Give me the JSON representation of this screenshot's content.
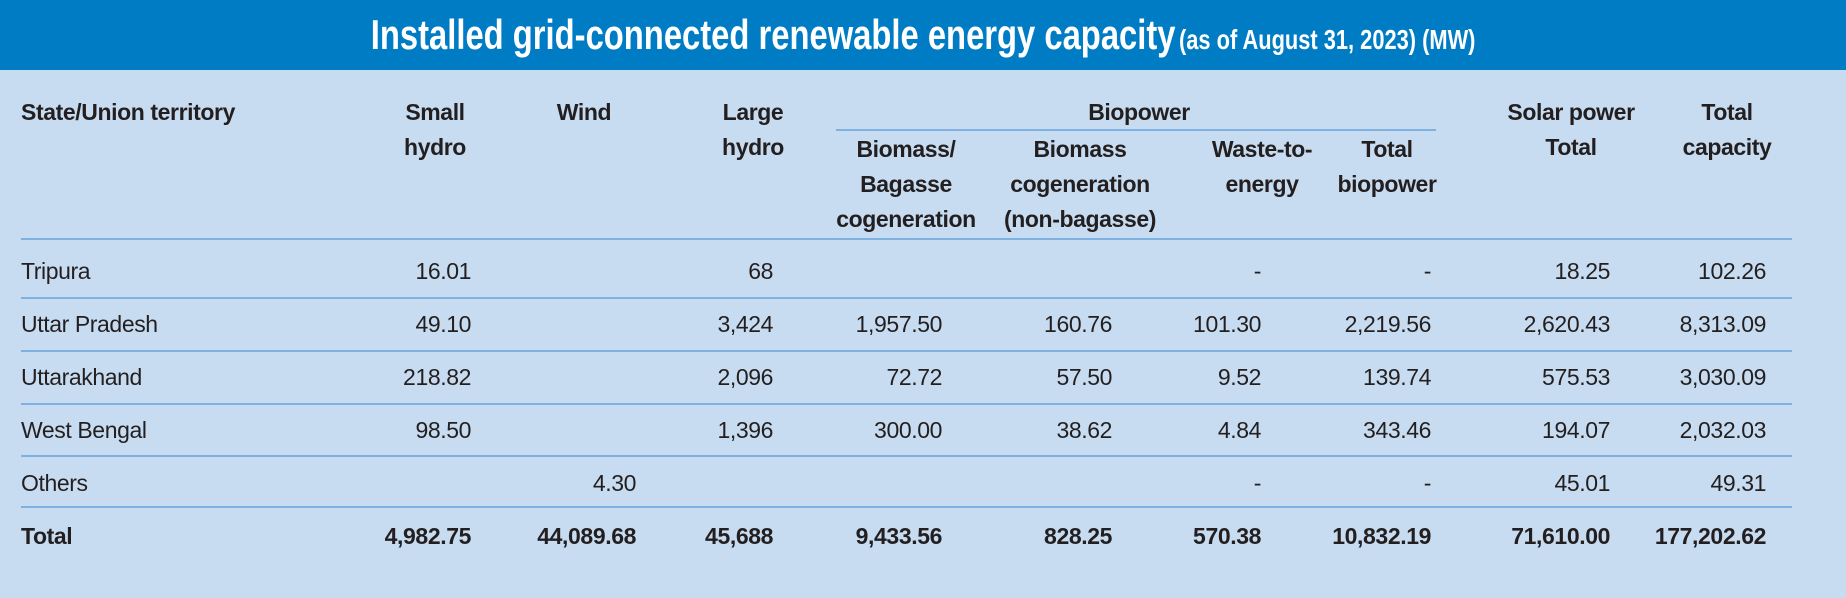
{
  "title": {
    "main": "Installed grid-connected renewable energy capacity",
    "sub": "(as of August 31, 2023) (MW)"
  },
  "colors": {
    "banner": "#007cc5",
    "background": "#c7dcf0",
    "rule": "#7fb1e0"
  },
  "headers": {
    "state": "State/Union territory",
    "small_hydro": [
      "Small",
      "hydro"
    ],
    "wind": [
      "Wind"
    ],
    "large_hydro": [
      "Large",
      "hydro"
    ],
    "biopower": "Biopower",
    "biomass_bagasse": [
      "Biomass/",
      "Bagasse",
      "cogeneration"
    ],
    "biomass_nonbagasse": [
      "Biomass",
      "cogeneration",
      "(non-bagasse)"
    ],
    "waste_to_energy": [
      "Waste-to-",
      "energy"
    ],
    "total_biopower": [
      "Total",
      "biopower"
    ],
    "solar_total": [
      "Solar power",
      "Total"
    ],
    "total_capacity": [
      "Total",
      "capacity"
    ]
  },
  "rows": [
    [
      "Tripura",
      "16.01",
      "",
      "68",
      "",
      "",
      "-",
      "-",
      "18.25",
      "102.26"
    ],
    [
      "Uttar Pradesh",
      "49.10",
      "",
      "3,424",
      "1,957.50",
      "160.76",
      "101.30",
      "2,219.56",
      "2,620.43",
      "8,313.09"
    ],
    [
      "Uttarakhand",
      "218.82",
      "",
      "2,096",
      "72.72",
      "57.50",
      "9.52",
      "139.74",
      "575.53",
      "3,030.09"
    ],
    [
      "West Bengal",
      "98.50",
      "",
      "1,396",
      "300.00",
      "38.62",
      "4.84",
      "343.46",
      "194.07",
      "2,032.03"
    ],
    [
      "Others",
      "",
      "4.30",
      "",
      "",
      "",
      "-",
      "-",
      "45.01",
      "49.31"
    ]
  ],
  "total_row": [
    "Total",
    "4,982.75",
    "44,089.68",
    "45,688",
    "9,433.56",
    "828.25",
    "570.38",
    "10,832.19",
    "71,610.00",
    "177,202.62"
  ]
}
